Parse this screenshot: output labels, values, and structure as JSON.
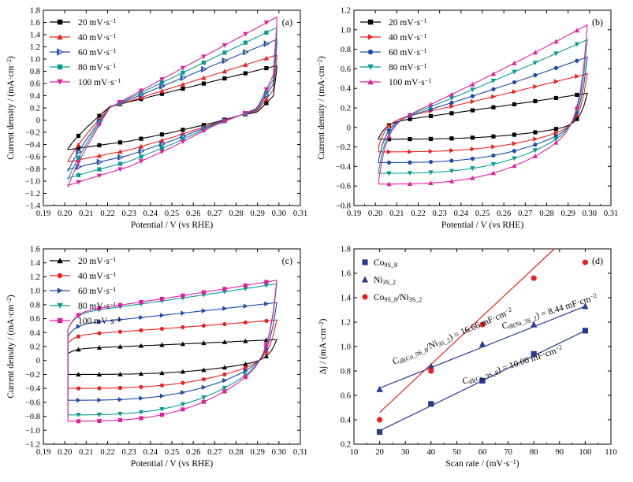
{
  "charts": [
    {
      "id": "a",
      "panel_label": "(a)",
      "type": "line",
      "xlabel": "Potential / V (vs RHE)",
      "ylabel": "Current density / (mA·cm⁻²)",
      "xlim": [
        0.19,
        0.31
      ],
      "ylim": [
        -1.4,
        1.8
      ],
      "x_ticks": [
        "0.19",
        "0.20",
        "0.21",
        "0.22",
        "0.23",
        "0.24",
        "0.25",
        "0.26",
        "0.27",
        "0.28",
        "0.29",
        "0.30",
        "0.31"
      ],
      "y_ticks": [
        "−1.4",
        "−1.2",
        "−1.0",
        "−0.8",
        "−0.6",
        "−0.4",
        "−0.2",
        "0",
        "0.2",
        "0.4",
        "0.6",
        "0.8",
        "1.0",
        "1.2",
        "1.4",
        "1.6",
        "1.8"
      ],
      "legend": {
        "position": "top-left"
      },
      "series": [
        {
          "name": "20 mV·s⁻¹",
          "color": "#000000",
          "marker": "square",
          "up_start": -0.47,
          "up_cross": 0.22,
          "up_end": 0.88,
          "down_start": 0.4,
          "down_end": -0.48
        },
        {
          "name": "40 mV·s⁻¹",
          "color": "#e8231f",
          "marker": "triangle",
          "up_start": -0.68,
          "up_cross": 0.21,
          "up_end": 1.05,
          "down_start": 0.5,
          "down_end": -0.68
        },
        {
          "name": "60 mV·s⁻¹",
          "color": "#1f4aa8",
          "marker": "half-triangle",
          "up_start": -0.84,
          "up_cross": 0.205,
          "up_end": 1.3,
          "down_start": 0.6,
          "down_end": -0.8
        },
        {
          "name": "80 mV·s⁻¹",
          "color": "#0a9a96",
          "marker": "square",
          "up_start": -0.98,
          "up_cross": 0.205,
          "up_end": 1.49,
          "down_start": 0.68,
          "down_end": -0.94
        },
        {
          "name": "100 mV·s⁻¹",
          "color": "#e0219e",
          "marker": "down-triangle",
          "up_start": -1.1,
          "up_cross": 0.205,
          "up_end": 1.66,
          "down_start": 0.75,
          "down_end": -1.06
        }
      ]
    },
    {
      "id": "b",
      "panel_label": "(b)",
      "type": "line",
      "xlabel": "Potential / V (vs RHE)",
      "ylabel": "Current density / (mA·cm⁻²)",
      "xlim": [
        0.19,
        0.31
      ],
      "ylim": [
        -0.8,
        1.2
      ],
      "x_ticks": [
        "0.19",
        "0.20",
        "0.21",
        "0.22",
        "0.23",
        "0.24",
        "0.25",
        "0.26",
        "0.27",
        "0.28",
        "0.29",
        "0.30",
        "0.31"
      ],
      "y_ticks": [
        "−0.8",
        "−0.6",
        "−0.4",
        "−0.2",
        "0",
        "0.2",
        "0.4",
        "0.6",
        "0.8",
        "1.0",
        "1.2"
      ],
      "legend": {
        "position": "top-left"
      },
      "series": [
        {
          "name": "20 mV·s⁻¹",
          "color": "#000000",
          "marker": "square",
          "up_start": -0.11,
          "up_end": 0.35,
          "down_start": 0.3,
          "down_end": -0.12
        },
        {
          "name": "40 mV·s⁻¹",
          "color": "#e8231f",
          "marker": "right-triangle",
          "up_start": -0.2,
          "up_end": 0.55,
          "down_start": 0.4,
          "down_end": -0.25
        },
        {
          "name": "60 mV·s⁻¹",
          "color": "#1f4aa8",
          "marker": "circle",
          "up_start": -0.33,
          "up_end": 0.72,
          "down_start": 0.5,
          "down_end": -0.36
        },
        {
          "name": "80 mV·s⁻¹",
          "color": "#0a9a96",
          "marker": "down-triangle",
          "up_start": -0.45,
          "up_end": 0.9,
          "down_start": 0.58,
          "down_end": -0.47
        },
        {
          "name": "100 mV·s⁻¹",
          "color": "#e0219e",
          "marker": "triangle",
          "up_start": -0.55,
          "up_end": 1.05,
          "down_start": 0.65,
          "down_end": -0.58
        }
      ]
    },
    {
      "id": "c",
      "panel_label": "(c)",
      "type": "line",
      "xlabel": "Potential / V (vs RHE)",
      "ylabel": "Current density / (mA·cm⁻²)",
      "xlim": [
        0.19,
        0.31
      ],
      "ylim": [
        -1.2,
        1.6
      ],
      "x_ticks": [
        "0.19",
        "0.20",
        "0.21",
        "0.22",
        "0.23",
        "0.24",
        "0.25",
        "0.26",
        "0.27",
        "0.28",
        "0.29",
        "0.30",
        "0.31"
      ],
      "y_ticks": [
        "−1.2",
        "−1.0",
        "−0.8",
        "−0.6",
        "−0.4",
        "−0.2",
        "0",
        "0.2",
        "0.4",
        "0.6",
        "0.8",
        "1.0",
        "1.2",
        "1.4",
        "1.6"
      ],
      "legend": {
        "position": "top-left"
      },
      "series": [
        {
          "name": "20 mV·s⁻¹",
          "color": "#000000",
          "marker": "triangle",
          "up_start": 0.1,
          "up_end": 0.3,
          "down_start": 0.25,
          "down_end": -0.2
        },
        {
          "name": "40 mV·s⁻¹",
          "color": "#e8231f",
          "marker": "circle",
          "up_start": 0.25,
          "up_end": 0.58,
          "down_start": 0.5,
          "down_end": -0.4
        },
        {
          "name": "60 mV·s⁻¹",
          "color": "#1f4aa8",
          "marker": "right-triangle",
          "up_start": 0.35,
          "up_end": 0.83,
          "down_start": 0.7,
          "down_end": -0.57
        },
        {
          "name": "80 mV·s⁻¹",
          "color": "#0a9a96",
          "marker": "down-triangle",
          "up_start": 0.45,
          "up_end": 1.1,
          "down_start": 0.9,
          "down_end": -0.78
        },
        {
          "name": "100 mV·s⁻¹",
          "color": "#e0219e",
          "marker": "square",
          "up_start": 0.45,
          "up_end": 1.15,
          "down_start": 0.95,
          "down_end": -0.87
        }
      ]
    },
    {
      "id": "d",
      "panel_label": "(d)",
      "type": "scatter",
      "xlabel": "Scan rate / (mV·s⁻¹)",
      "ylabel": "Δj / (mA·cm⁻²)",
      "xlim": [
        10,
        110
      ],
      "ylim": [
        0.2,
        1.8
      ],
      "x_ticks": [
        "10",
        "20",
        "30",
        "40",
        "50",
        "60",
        "70",
        "80",
        "90",
        "100",
        "110"
      ],
      "y_ticks": [
        "0.2",
        "0.4",
        "0.6",
        "0.8",
        "1.0",
        "1.2",
        "1.4",
        "1.6",
        "1.8"
      ],
      "legend": {
        "position": "top-left"
      },
      "series": [
        {
          "name": "Co9S8",
          "color": "#2a3b8f",
          "marker": "square",
          "x": [
            20,
            40,
            60,
            80,
            100
          ],
          "y": [
            0.3,
            0.53,
            0.72,
            0.94,
            1.13
          ],
          "fit": {
            "x": [
              20,
              100
            ],
            "y": [
              0.31,
              1.13
            ]
          }
        },
        {
          "name": "Ni3S2",
          "color": "#2a3b8f",
          "marker": "triangle",
          "x": [
            20,
            40,
            60,
            80,
            100
          ],
          "y": [
            0.65,
            0.84,
            1.02,
            1.18,
            1.33
          ],
          "fit": {
            "x": [
              20,
              100
            ],
            "y": [
              0.66,
              1.33
            ]
          }
        },
        {
          "name": "Co9S8/Ni3S2",
          "color": "#e8231f",
          "marker": "circle",
          "x": [
            20,
            40,
            60,
            80,
            100
          ],
          "y": [
            0.4,
            0.8,
            1.18,
            1.56,
            1.69
          ],
          "fit": {
            "x": [
              20,
              88
            ],
            "y": [
              0.46,
              1.8
            ]
          }
        }
      ],
      "annotations": [
        {
          "id": "cdl-co9s8-ni3s2",
          "text": "Cdl(Co9S8/Ni3S2) = 16.66 mF·cm⁻²"
        },
        {
          "id": "cdl-ni3s2",
          "text": "Cdl(Ni3S2) = 8.44 mF·cm⁻²"
        },
        {
          "id": "cdl-co9s8",
          "text": "Cdl(Co9S8) = 10.00 mF·cm⁻²"
        }
      ]
    }
  ]
}
